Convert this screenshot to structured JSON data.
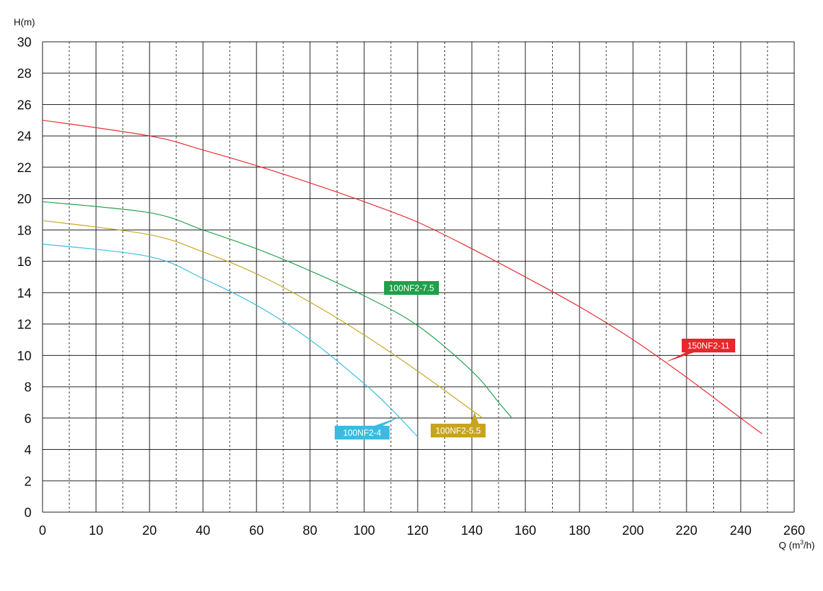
{
  "chart_data": {
    "type": "line",
    "ylabel": "H(m)",
    "xlabel_prefix": "Q (m",
    "xlabel_sup": "3",
    "xlabel_suffix": "/h)",
    "xlim": [
      0,
      280
    ],
    "ylim": [
      0,
      30
    ],
    "x_ticks": [
      0,
      10,
      20,
      40,
      60,
      80,
      100,
      120,
      140,
      160,
      180,
      200,
      220,
      240,
      260
    ],
    "y_ticks": [
      0,
      2,
      4,
      6,
      8,
      10,
      12,
      14,
      16,
      18,
      20,
      22,
      24,
      26,
      28,
      30
    ],
    "grid": true,
    "series": [
      {
        "name": "150NF2-11",
        "color": "#e8262c",
        "x": [
          0,
          20,
          40,
          60,
          80,
          100,
          120,
          140,
          160,
          180,
          200,
          220,
          240,
          248
        ],
        "y": [
          25.0,
          24.0,
          23.1,
          22.1,
          21.0,
          19.8,
          18.5,
          16.8,
          15.0,
          13.1,
          11.0,
          8.6,
          6.0,
          5.0
        ]
      },
      {
        "name": "100NF2-7.5",
        "color": "#20a04a",
        "x": [
          0,
          20,
          40,
          60,
          80,
          100,
          120,
          140,
          150,
          155
        ],
        "y": [
          19.8,
          19.1,
          18.0,
          16.8,
          15.4,
          13.8,
          11.9,
          9.0,
          7.0,
          6.0
        ]
      },
      {
        "name": "100NF2-5.5",
        "color": "#c7a41d",
        "x": [
          0,
          20,
          40,
          60,
          80,
          100,
          120,
          140,
          144
        ],
        "y": [
          18.6,
          17.7,
          16.6,
          15.2,
          13.4,
          11.3,
          9.0,
          6.5,
          6.0
        ]
      },
      {
        "name": "100NF2-4",
        "color": "#3bbbe4",
        "x": [
          0,
          20,
          40,
          60,
          80,
          100,
          110,
          120
        ],
        "y": [
          17.1,
          16.3,
          14.9,
          13.2,
          11.0,
          8.2,
          6.6,
          4.8
        ]
      }
    ]
  }
}
